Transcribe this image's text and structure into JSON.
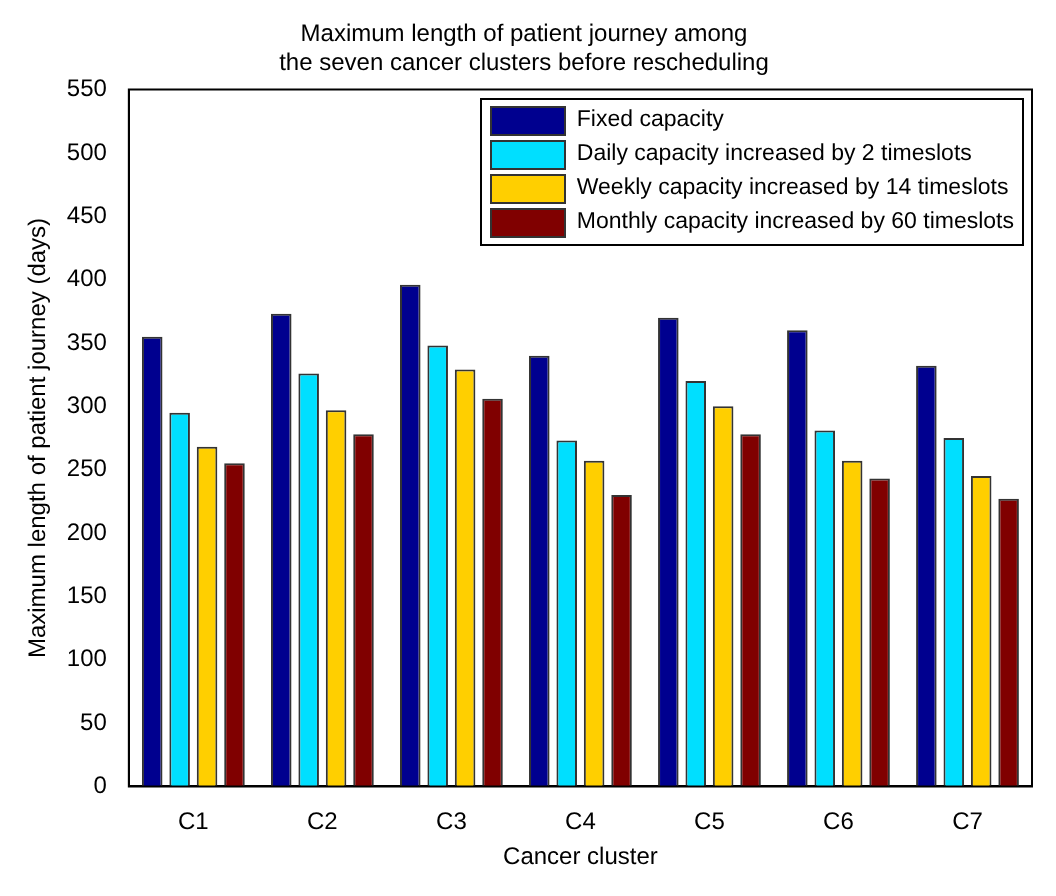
{
  "chart_data": {
    "type": "bar",
    "title": "Maximum length of patient journey among\nthe seven cancer clusters before rescheduling",
    "xlabel": "Cancer cluster",
    "ylabel": "Maximum length of patient journey (days)",
    "categories": [
      "C1",
      "C2",
      "C3",
      "C4",
      "C5",
      "C6",
      "C7"
    ],
    "series": [
      {
        "name": "Fixed capacity",
        "color": "#00008f",
        "values": [
          355,
          373,
          396,
          340,
          370,
          360,
          332
        ]
      },
      {
        "name": "Daily capacity increased by 2 timeslots",
        "color": "#00dfff",
        "values": [
          295,
          326,
          348,
          273,
          320,
          281,
          275
        ]
      },
      {
        "name": "Weekly capacity increased by 14 timeslots",
        "color": "#ffcf00",
        "values": [
          268,
          297,
          329,
          257,
          300,
          257,
          245
        ]
      },
      {
        "name": "Monthly capacity increased by 60 timeslots",
        "color": "#800000",
        "values": [
          255,
          278,
          306,
          230,
          278,
          243,
          227
        ]
      }
    ],
    "ylim": [
      0,
      550
    ],
    "yticks": [
      0,
      50,
      100,
      150,
      200,
      250,
      300,
      350,
      400,
      450,
      500,
      550
    ],
    "grid": false,
    "legend": "top right"
  }
}
